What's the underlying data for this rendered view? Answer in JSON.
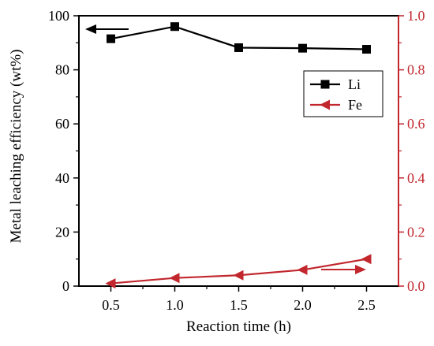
{
  "chart_data": {
    "type": "line",
    "xlabel": "Reaction time (h)",
    "ylabel_left": "Metal leaching efficiency (wt%)",
    "x": [
      0.5,
      1.0,
      1.5,
      2.0,
      2.5
    ],
    "x_ticks": [
      "0.5",
      "1.0",
      "1.5",
      "2.0",
      "2.5"
    ],
    "xlim": [
      0.25,
      2.75
    ],
    "y_left_ticks": [
      "0",
      "20",
      "40",
      "60",
      "80",
      "100"
    ],
    "y_left_lim": [
      0,
      100
    ],
    "y_right_ticks": [
      "0.0",
      "0.2",
      "0.4",
      "0.6",
      "0.8",
      "1.0"
    ],
    "y_right_lim": [
      0,
      1.0
    ],
    "series": [
      {
        "name": "Li",
        "axis": "left",
        "values": [
          91.5,
          96.0,
          88.2,
          88.0,
          87.6
        ],
        "color": "#000000",
        "marker": "square"
      },
      {
        "name": "Fe",
        "axis": "right",
        "values": [
          0.01,
          0.03,
          0.04,
          0.06,
          0.1
        ],
        "color": "#c1272d",
        "marker": "triangle-left"
      }
    ],
    "axis_colors": {
      "left": "#000000",
      "right": "#c1272d"
    },
    "legend_position": "upper-right",
    "grid": false
  }
}
